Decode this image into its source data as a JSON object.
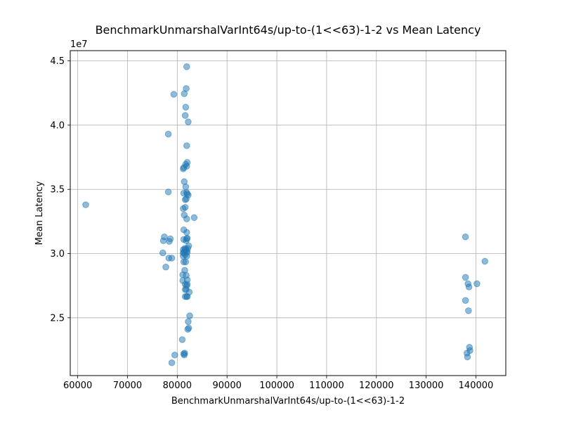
{
  "chart_data": {
    "type": "scatter",
    "title": "BenchmarkUnmarshalVarInt64s/up-to-(1<<63)-1-2 vs Mean Latency",
    "xlabel": "BenchmarkUnmarshalVarInt64s/up-to-(1<<63)-1-2",
    "ylabel": "Mean Latency",
    "y_offset_label": "1e7",
    "xlim": [
      58500,
      146000
    ],
    "ylim": [
      20500000,
      45800000
    ],
    "x_ticks": [
      60000,
      70000,
      80000,
      90000,
      100000,
      110000,
      120000,
      130000,
      140000
    ],
    "x_tick_labels": [
      "60000",
      "70000",
      "80000",
      "90000",
      "100000",
      "110000",
      "120000",
      "130000",
      "140000"
    ],
    "y_ticks": [
      25000000,
      30000000,
      35000000,
      40000000,
      45000000
    ],
    "y_tick_labels": [
      "2.5",
      "3.0",
      "3.5",
      "4.0",
      "4.5"
    ],
    "grid": true,
    "point_color": "#1f77b4",
    "point_alpha": 0.5,
    "points": [
      [
        61600,
        33800000
      ],
      [
        77100,
        30050000
      ],
      [
        77200,
        31000000
      ],
      [
        77400,
        31300000
      ],
      [
        77700,
        28950000
      ],
      [
        78200,
        39300000
      ],
      [
        78200,
        34800000
      ],
      [
        78300,
        29650000
      ],
      [
        78400,
        30950000
      ],
      [
        78600,
        31150000
      ],
      [
        78900,
        29650000
      ],
      [
        78900,
        21500000
      ],
      [
        79300,
        42400000
      ],
      [
        79500,
        22100000
      ],
      [
        81000,
        23300000
      ],
      [
        81100,
        28350000
      ],
      [
        81100,
        27900000
      ],
      [
        81200,
        30300000
      ],
      [
        81200,
        30050000
      ],
      [
        81200,
        29800000
      ],
      [
        81200,
        33500000
      ],
      [
        81200,
        36600000
      ],
      [
        81300,
        36700000
      ],
      [
        81300,
        34700000
      ],
      [
        81300,
        31850000
      ],
      [
        81300,
        31100000
      ],
      [
        81300,
        30100000
      ],
      [
        81300,
        29350000
      ],
      [
        81300,
        22200000
      ],
      [
        81400,
        42450000
      ],
      [
        81400,
        35600000
      ],
      [
        81400,
        33000000
      ],
      [
        81400,
        22100000
      ],
      [
        81500,
        30400000
      ],
      [
        81500,
        28700000
      ],
      [
        81500,
        22250000
      ],
      [
        81600,
        34200000
      ],
      [
        81600,
        33600000
      ],
      [
        81600,
        30200000
      ],
      [
        81600,
        29900000
      ],
      [
        81600,
        27600000
      ],
      [
        81600,
        27200000
      ],
      [
        81600,
        26650000
      ],
      [
        81600,
        40750000
      ],
      [
        81700,
        36950000
      ],
      [
        81700,
        35200000
      ],
      [
        81700,
        29350000
      ],
      [
        81700,
        30350000
      ],
      [
        81700,
        41400000
      ],
      [
        81800,
        42850000
      ],
      [
        81800,
        34250000
      ],
      [
        81800,
        31000000
      ],
      [
        81800,
        28300000
      ],
      [
        81800,
        27200000
      ],
      [
        81900,
        44550000
      ],
      [
        81900,
        38400000
      ],
      [
        81900,
        36800000
      ],
      [
        81900,
        34750000
      ],
      [
        81900,
        32700000
      ],
      [
        81900,
        31650000
      ],
      [
        81900,
        31150000
      ],
      [
        81900,
        30200000
      ],
      [
        81900,
        29800000
      ],
      [
        81900,
        27500000
      ],
      [
        81900,
        26650000
      ],
      [
        82000,
        37100000
      ],
      [
        82000,
        34650000
      ],
      [
        82000,
        31200000
      ],
      [
        82000,
        30100000
      ],
      [
        82000,
        27950000
      ],
      [
        82000,
        27600000
      ],
      [
        82000,
        26650000
      ],
      [
        82100,
        30400000
      ],
      [
        82100,
        24100000
      ],
      [
        82200,
        34550000
      ],
      [
        82200,
        40250000
      ],
      [
        82200,
        24700000
      ],
      [
        82300,
        30600000
      ],
      [
        82300,
        24200000
      ],
      [
        82400,
        27000000
      ],
      [
        82500,
        25150000
      ],
      [
        83400,
        32800000
      ],
      [
        137900,
        31300000
      ],
      [
        137900,
        28150000
      ],
      [
        137900,
        26350000
      ],
      [
        138200,
        22250000
      ],
      [
        138300,
        21950000
      ],
      [
        138400,
        27650000
      ],
      [
        138500,
        25550000
      ],
      [
        138600,
        27400000
      ],
      [
        138700,
        22700000
      ],
      [
        138800,
        22450000
      ],
      [
        140200,
        27650000
      ],
      [
        141800,
        29400000
      ]
    ]
  }
}
